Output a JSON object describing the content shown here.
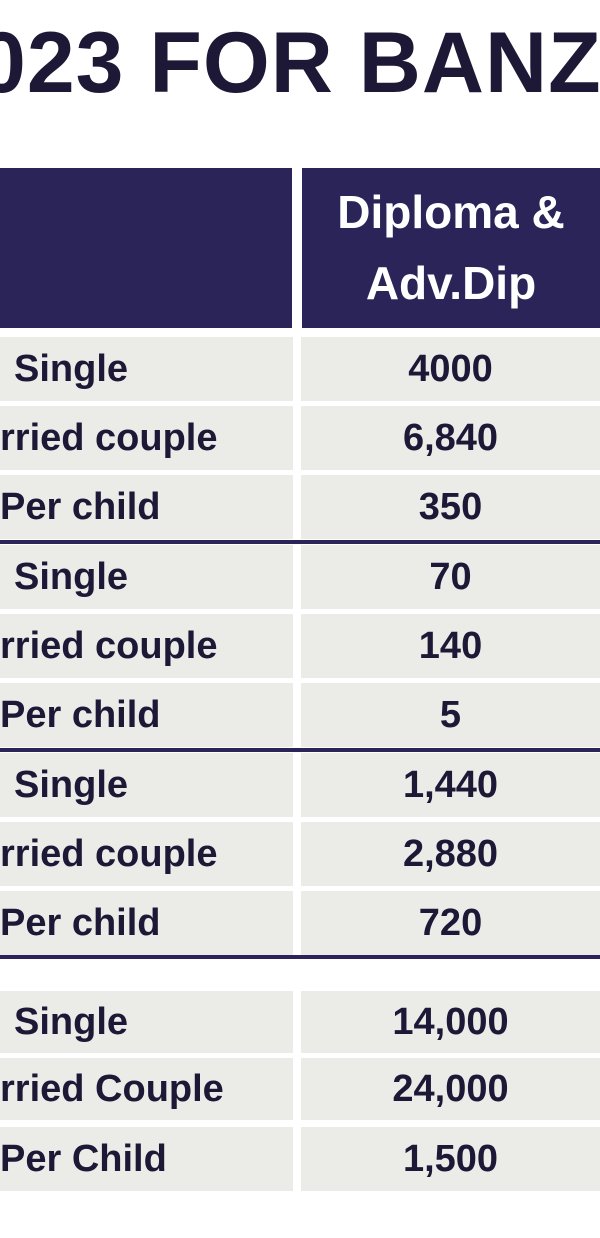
{
  "title": "023 FOR BANZ",
  "header": {
    "col_right_line1": "Diploma &",
    "col_right_line2": "Adv.Dip"
  },
  "groups": [
    {
      "rows": [
        {
          "label": "Single",
          "value": "4000"
        },
        {
          "label": "rried couple",
          "value": "6,840"
        },
        {
          "label": "Per child",
          "value": "350"
        }
      ]
    },
    {
      "rows": [
        {
          "label": "Single",
          "value": "70"
        },
        {
          "label": "rried couple",
          "value": "140"
        },
        {
          "label": "Per child",
          "value": "5"
        }
      ]
    },
    {
      "rows": [
        {
          "label": "Single",
          "value": "1,440"
        },
        {
          "label": "rried couple",
          "value": "2,880"
        },
        {
          "label": "Per child",
          "value": "720"
        }
      ]
    },
    {
      "rows": [
        {
          "label": "Single",
          "value": "14,000"
        },
        {
          "label": "rried Couple",
          "value": "24,000"
        },
        {
          "label": "Per Child",
          "value": "1,500"
        }
      ]
    }
  ],
  "colors": {
    "header_bg": "#2a2458",
    "cell_bg": "#ebebe8",
    "text": "#1c1836"
  }
}
